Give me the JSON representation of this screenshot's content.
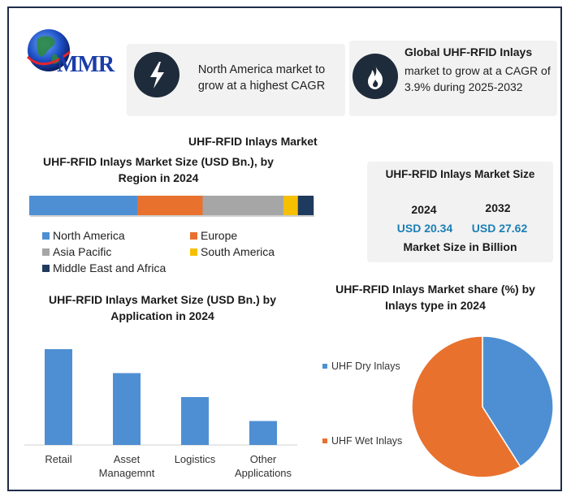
{
  "brand": {
    "logo_text": "MMR"
  },
  "cards": {
    "card1_text": "North America market to grow at a highest CAGR",
    "card2_title": "Global UHF-RFID Inlays",
    "card2_text": "market to grow at a CAGR of 3.9% during 2025-2032",
    "card1_icon": "lightning-icon",
    "card2_icon": "flame-icon"
  },
  "main_title": "UHF-RFID Inlays Market",
  "market_size": {
    "title": "UHF-RFID Inlays Market Size",
    "year1": "2024",
    "year2": "2032",
    "value1": "USD 20.34",
    "value2": "USD 27.62",
    "caption": "Market Size in Billion",
    "value_color": "#1a7fb5"
  },
  "chart_data": [
    {
      "type": "bar",
      "orientation": "horizontal-stacked",
      "title": "UHF-RFID Inlays Market Size (USD Bn.), by Region in 2024",
      "series": [
        {
          "name": "North America",
          "value": 38,
          "color": "#4e8fd3"
        },
        {
          "name": "Europe",
          "value": 23,
          "color": "#e8712e"
        },
        {
          "name": "Asia Pacific",
          "value": 28.5,
          "color": "#a6a6a6"
        },
        {
          "name": "South America",
          "value": 5,
          "color": "#f6c000"
        },
        {
          "name": "Middle East and Africa",
          "value": 5.5,
          "color": "#1f3a5f"
        }
      ],
      "legend_placement": "bottom"
    },
    {
      "type": "bar",
      "title": "UHF-RFID Inlays Market Size (USD Bn.) by Application in 2024",
      "categories": [
        "Retail",
        "Asset Managemnt",
        "Logistics",
        "Other Applications"
      ],
      "values": [
        100,
        75,
        50,
        25
      ],
      "ylim": [
        0,
        100
      ],
      "color": "#4e8fd3",
      "grid": false
    },
    {
      "type": "pie",
      "title": "UHF-RFID Inlays Market share (%) by Inlays type  in 2024",
      "categories": [
        "UHF Dry Inlays",
        "UHF Wet Inlays"
      ],
      "values": [
        41,
        59
      ],
      "colors": [
        "#4e8fd3",
        "#e8712e"
      ],
      "legend_placement": "left"
    }
  ]
}
